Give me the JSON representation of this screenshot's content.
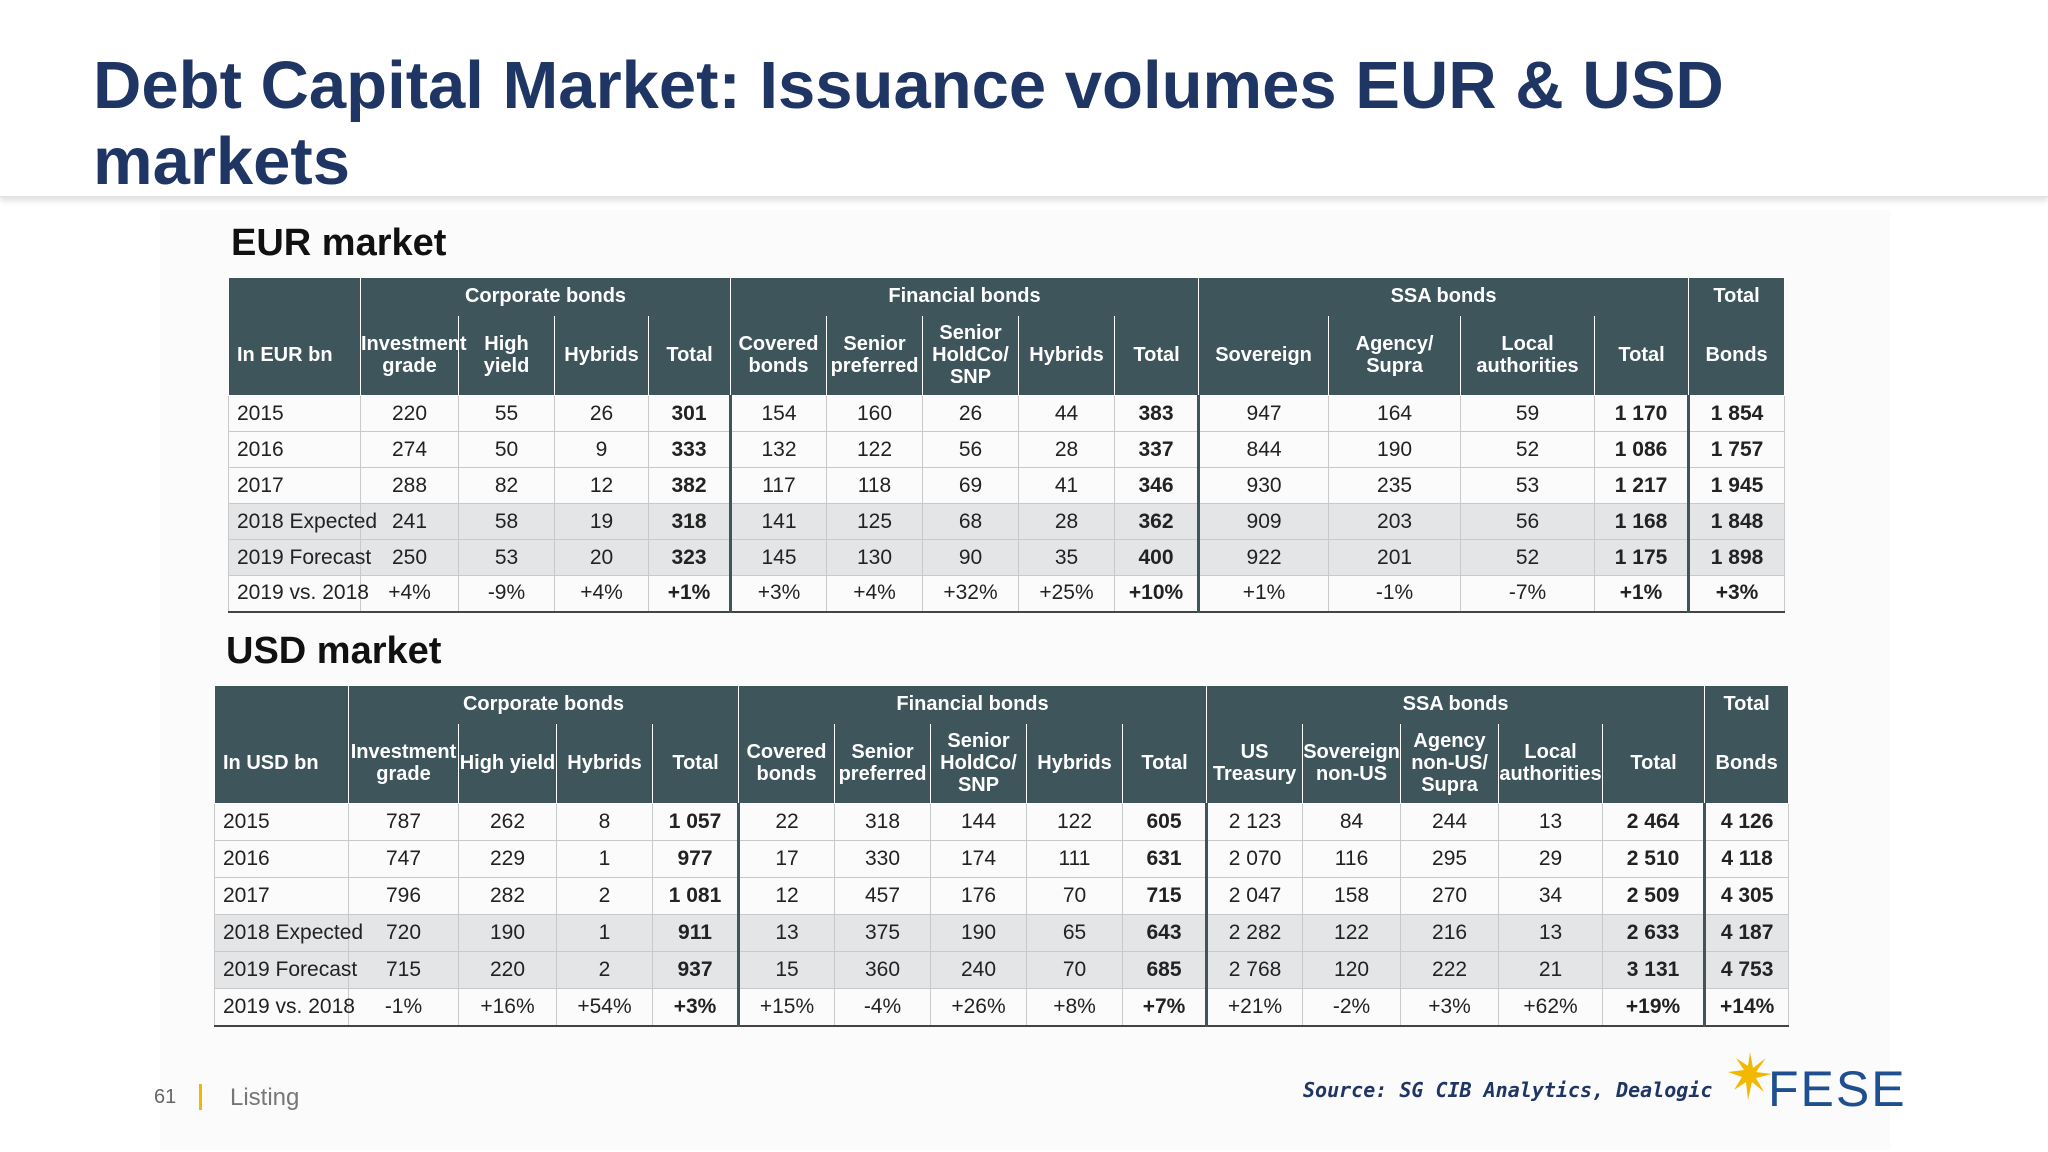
{
  "title": "Debt Capital Market: Issuance volumes EUR & USD markets",
  "eur": {
    "label": "EUR market",
    "groups": {
      "corporate": "Corporate bonds",
      "financial": "Financial bonds",
      "ssa": "SSA bonds",
      "total": "Total"
    },
    "headers": {
      "corner": "In EUR bn",
      "ig": "Investment grade",
      "hy": "High yield",
      "hyb": "Hybrids",
      "tot": "Total",
      "cov": "Covered bonds",
      "sp": "Senior preferred",
      "snp": "Senior HoldCo/ SNP",
      "fhyb": "Hybrids",
      "ftot": "Total",
      "s1": "Sovereign",
      "s2": "Agency/ Supra",
      "s3": "Local authorities",
      "stot": "Total",
      "bonds": "Bonds"
    },
    "rows": [
      {
        "year": "2015",
        "ig": "220",
        "hy": "55",
        "hyb": "26",
        "tot": "301",
        "cov": "154",
        "sp": "160",
        "snp": "26",
        "fhyb": "44",
        "ftot": "383",
        "s1": "947",
        "s2": "164",
        "s3": "59",
        "stot": "1 170",
        "bonds": "1 854"
      },
      {
        "year": "2016",
        "ig": "274",
        "hy": "50",
        "hyb": "9",
        "tot": "333",
        "cov": "132",
        "sp": "122",
        "snp": "56",
        "fhyb": "28",
        "ftot": "337",
        "s1": "844",
        "s2": "190",
        "s3": "52",
        "stot": "1 086",
        "bonds": "1 757"
      },
      {
        "year": "2017",
        "ig": "288",
        "hy": "82",
        "hyb": "12",
        "tot": "382",
        "cov": "117",
        "sp": "118",
        "snp": "69",
        "fhyb": "41",
        "ftot": "346",
        "s1": "930",
        "s2": "235",
        "s3": "53",
        "stot": "1 217",
        "bonds": "1 945"
      },
      {
        "year": "2018 Expected",
        "ig": "241",
        "hy": "58",
        "hyb": "19",
        "tot": "318",
        "cov": "141",
        "sp": "125",
        "snp": "68",
        "fhyb": "28",
        "ftot": "362",
        "s1": "909",
        "s2": "203",
        "s3": "56",
        "stot": "1 168",
        "bonds": "1 848"
      },
      {
        "year": "2019 Forecast",
        "ig": "250",
        "hy": "53",
        "hyb": "20",
        "tot": "323",
        "cov": "145",
        "sp": "130",
        "snp": "90",
        "fhyb": "35",
        "ftot": "400",
        "s1": "922",
        "s2": "201",
        "s3": "52",
        "stot": "1 175",
        "bonds": "1 898"
      },
      {
        "year": "2019 vs. 2018",
        "ig": "+4%",
        "hy": "-9%",
        "hyb": "+4%",
        "tot": "+1%",
        "cov": "+3%",
        "sp": "+4%",
        "snp": "+32%",
        "fhyb": "+25%",
        "ftot": "+10%",
        "s1": "+1%",
        "s2": "-1%",
        "s3": "-7%",
        "stot": "+1%",
        "bonds": "+3%"
      }
    ]
  },
  "usd": {
    "label": "USD market",
    "groups": {
      "corporate": "Corporate bonds",
      "financial": "Financial bonds",
      "ssa": "SSA bonds",
      "total": "Total"
    },
    "headers": {
      "corner": "In USD bn",
      "ig": "Investment grade",
      "hy": "High yield",
      "hyb": "Hybrids",
      "tot": "Total",
      "cov": "Covered bonds",
      "sp": "Senior preferred",
      "snp": "Senior HoldCo/ SNP",
      "fhyb": "Hybrids",
      "ftot": "Total",
      "s1": "US Treasury",
      "s2": "Sovereign non-US",
      "s2b": "Agency non-US/ Supra",
      "s3": "Local authorities",
      "stot": "Total",
      "bonds": "Bonds"
    },
    "rows": [
      {
        "year": "2015",
        "ig": "787",
        "hy": "262",
        "hyb": "8",
        "tot": "1 057",
        "cov": "22",
        "sp": "318",
        "snp": "144",
        "fhyb": "122",
        "ftot": "605",
        "s1": "2 123",
        "s2": "84",
        "s2b": "244",
        "s3": "13",
        "stot": "2 464",
        "bonds": "4 126"
      },
      {
        "year": "2016",
        "ig": "747",
        "hy": "229",
        "hyb": "1",
        "tot": "977",
        "cov": "17",
        "sp": "330",
        "snp": "174",
        "fhyb": "111",
        "ftot": "631",
        "s1": "2 070",
        "s2": "116",
        "s2b": "295",
        "s3": "29",
        "stot": "2 510",
        "bonds": "4 118"
      },
      {
        "year": "2017",
        "ig": "796",
        "hy": "282",
        "hyb": "2",
        "tot": "1 081",
        "cov": "12",
        "sp": "457",
        "snp": "176",
        "fhyb": "70",
        "ftot": "715",
        "s1": "2 047",
        "s2": "158",
        "s2b": "270",
        "s3": "34",
        "stot": "2 509",
        "bonds": "4 305"
      },
      {
        "year": "2018 Expected",
        "ig": "720",
        "hy": "190",
        "hyb": "1",
        "tot": "911",
        "cov": "13",
        "sp": "375",
        "snp": "190",
        "fhyb": "65",
        "ftot": "643",
        "s1": "2 282",
        "s2": "122",
        "s2b": "216",
        "s3": "13",
        "stot": "2 633",
        "bonds": "4 187"
      },
      {
        "year": "2019 Forecast",
        "ig": "715",
        "hy": "220",
        "hyb": "2",
        "tot": "937",
        "cov": "15",
        "sp": "360",
        "snp": "240",
        "fhyb": "70",
        "ftot": "685",
        "s1": "2 768",
        "s2": "120",
        "s2b": "222",
        "s3": "21",
        "stot": "3 131",
        "bonds": "4 753"
      },
      {
        "year": "2019 vs. 2018",
        "ig": "-1%",
        "hy": "+16%",
        "hyb": "+54%",
        "tot": "+3%",
        "cov": "+15%",
        "sp": "-4%",
        "snp": "+26%",
        "fhyb": "+8%",
        "ftot": "+7%",
        "s1": "+21%",
        "s2": "-2%",
        "s2b": "+3%",
        "s3": "+62%",
        "stot": "+19%",
        "bonds": "+14%"
      }
    ]
  },
  "footer": {
    "page": "61",
    "section": "Listing",
    "source": "Source: SG CIB Analytics, Dealogic",
    "logo": "FESE"
  },
  "colors": {
    "title": "#1f3564",
    "header_bg": "#3f555c",
    "shade": "#e3e5e6",
    "accent": "#f2b800"
  }
}
